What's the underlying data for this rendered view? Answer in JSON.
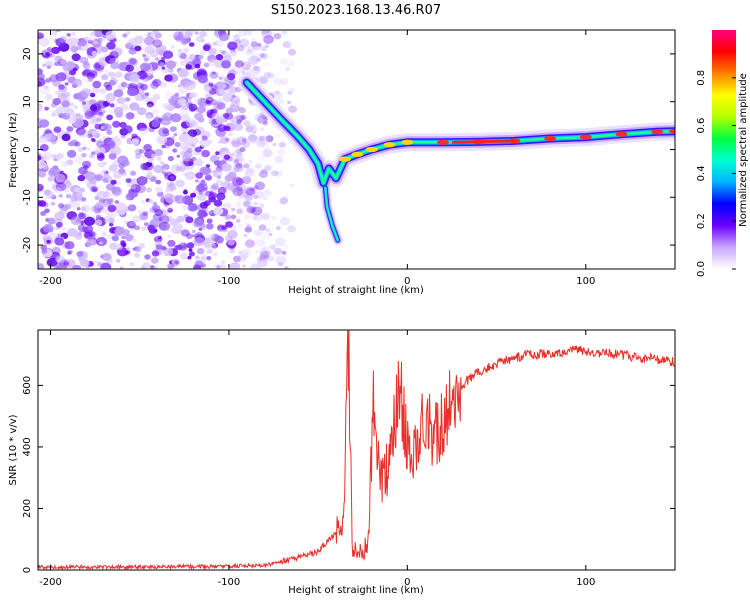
{
  "figure": {
    "title": "S150.2023.168.13.46.R07"
  },
  "chart_data": [
    {
      "type": "heatmap",
      "description_kind": "spectrogram",
      "xlabel": "Height of straight line (km)",
      "ylabel": "Frequency (Hz)",
      "xlim": [
        -207,
        150
      ],
      "ylim": [
        -25,
        25
      ],
      "xticks": [
        -200,
        -100,
        0,
        100
      ],
      "yticks": [
        -20,
        -10,
        0,
        10,
        20
      ],
      "grid": false,
      "colorbar": {
        "label": "Normalized spectral amplitude",
        "range": [
          0,
          1
        ],
        "ticks": [
          0.0,
          0.2,
          0.4,
          0.6,
          0.8
        ],
        "colormap": [
          "#ffffff",
          "#c8a8ff",
          "#6a00ff",
          "#0000ff",
          "#00b4ff",
          "#00ffd0",
          "#00ff40",
          "#b4ff00",
          "#ffff00",
          "#ff8000",
          "#ff0000",
          "#ff0080"
        ]
      },
      "noise_region": {
        "x": [
          -207,
          -78
        ],
        "y": [
          -25,
          25
        ]
      },
      "ridge": [
        {
          "x": -90,
          "y": 14
        },
        {
          "x": -80,
          "y": 10
        },
        {
          "x": -70,
          "y": 6
        },
        {
          "x": -62,
          "y": 3
        },
        {
          "x": -55,
          "y": 0
        },
        {
          "x": -50,
          "y": -3
        },
        {
          "x": -47,
          "y": -7
        },
        {
          "x": -44,
          "y": -4
        },
        {
          "x": -40,
          "y": -6
        },
        {
          "x": -35,
          "y": -2
        },
        {
          "x": -28,
          "y": -1
        },
        {
          "x": -20,
          "y": 0
        },
        {
          "x": -10,
          "y": 1
        },
        {
          "x": 0,
          "y": 1.5
        },
        {
          "x": 20,
          "y": 1.5
        },
        {
          "x": 40,
          "y": 1.6
        },
        {
          "x": 60,
          "y": 1.8
        },
        {
          "x": 80,
          "y": 2.3
        },
        {
          "x": 100,
          "y": 2.6
        },
        {
          "x": 120,
          "y": 3.2
        },
        {
          "x": 140,
          "y": 3.7
        },
        {
          "x": 150,
          "y": 3.8
        }
      ],
      "branch": [
        {
          "x": -46,
          "y": -8
        },
        {
          "x": -45,
          "y": -12
        },
        {
          "x": -42,
          "y": -16
        },
        {
          "x": -39,
          "y": -19
        }
      ]
    },
    {
      "type": "line",
      "xlabel": "Height of straight line (km)",
      "ylabel": "SNR (10 * v/v)",
      "xlim": [
        -207,
        150
      ],
      "ylim": [
        0,
        780
      ],
      "xticks": [
        -200,
        -100,
        0,
        100
      ],
      "yticks": [
        0,
        200,
        400,
        600
      ],
      "grid": false,
      "series": [
        {
          "color": "#e8302a",
          "points": [
            {
              "x": -207,
              "y": 10
            },
            {
              "x": -150,
              "y": 10
            },
            {
              "x": -100,
              "y": 12
            },
            {
              "x": -80,
              "y": 15
            },
            {
              "x": -65,
              "y": 35
            },
            {
              "x": -50,
              "y": 60
            },
            {
              "x": -42,
              "y": 110
            },
            {
              "x": -36,
              "y": 150
            },
            {
              "x": -33,
              "y": 740
            },
            {
              "x": -31,
              "y": 80
            },
            {
              "x": -27,
              "y": 50
            },
            {
              "x": -22,
              "y": 80
            },
            {
              "x": -19,
              "y": 550
            },
            {
              "x": -15,
              "y": 300
            },
            {
              "x": -10,
              "y": 330
            },
            {
              "x": -5,
              "y": 600
            },
            {
              "x": 0,
              "y": 420
            },
            {
              "x": 5,
              "y": 380
            },
            {
              "x": 10,
              "y": 500
            },
            {
              "x": 15,
              "y": 430
            },
            {
              "x": 20,
              "y": 490
            },
            {
              "x": 25,
              "y": 560
            },
            {
              "x": 30,
              "y": 600
            },
            {
              "x": 40,
              "y": 645
            },
            {
              "x": 50,
              "y": 670
            },
            {
              "x": 60,
              "y": 690
            },
            {
              "x": 70,
              "y": 700
            },
            {
              "x": 80,
              "y": 705
            },
            {
              "x": 90,
              "y": 710
            },
            {
              "x": 97,
              "y": 715
            },
            {
              "x": 100,
              "y": 705
            },
            {
              "x": 110,
              "y": 705
            },
            {
              "x": 120,
              "y": 700
            },
            {
              "x": 130,
              "y": 690
            },
            {
              "x": 140,
              "y": 685
            },
            {
              "x": 150,
              "y": 675
            }
          ]
        }
      ]
    }
  ]
}
